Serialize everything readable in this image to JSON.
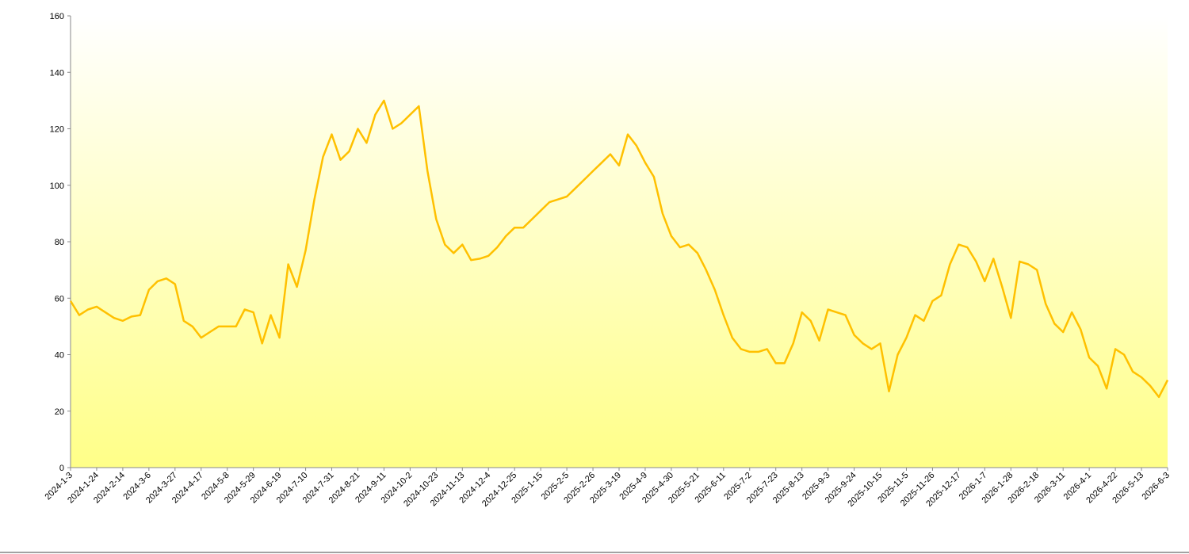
{
  "chart_data": {
    "type": "line",
    "categories": [
      "2024-1-3",
      null,
      null,
      "2024-1-24",
      null,
      null,
      "2024-2-14",
      null,
      null,
      "2024-3-6",
      null,
      null,
      "2024-3-27",
      null,
      null,
      "2024-4-17",
      null,
      null,
      "2024-5-8",
      null,
      null,
      "2024-5-29",
      null,
      null,
      "2024-6-19",
      null,
      null,
      "2024-7-10",
      null,
      null,
      "2024-7-31",
      null,
      null,
      "2024-8-21",
      null,
      null,
      "2024-9-11",
      null,
      null,
      "2024-10-2",
      null,
      null,
      "2024-10-23",
      null,
      null,
      "2024-11-13",
      null,
      null,
      "2024-12-4",
      null,
      null,
      "2024-12-25",
      null,
      null,
      "2025-1-15",
      null,
      null,
      "2025-2-5",
      null,
      null,
      "2025-2-26",
      null,
      null,
      "2025-3-19",
      null,
      null,
      "2025-4-9",
      null,
      null,
      "2025-4-30",
      null,
      null,
      "2025-5-21",
      null,
      null,
      "2025-6-11",
      null,
      null,
      "2025-7-2",
      null,
      null,
      "2025-7-23",
      null,
      null,
      "2025-8-13",
      null,
      null,
      "2025-9-3",
      null,
      null,
      "2025-9-24",
      null,
      null,
      "2025-10-15",
      null,
      null,
      "2025-11-5",
      null,
      null,
      "2025-11-26",
      null,
      null,
      "2025-12-17",
      null,
      null,
      "2026-1-7",
      null,
      null,
      "2026-1-28",
      null,
      null,
      "2026-2-18",
      null,
      null,
      "2026-3-11",
      null,
      null,
      "2026-4-1",
      null,
      null,
      "2026-4-22",
      null,
      null,
      "2026-5-13",
      null,
      null,
      "2026-6-3"
    ],
    "values": [
      59,
      54,
      56,
      57,
      55,
      53,
      52,
      53.5,
      54,
      63,
      66,
      67,
      65,
      52,
      50,
      46,
      48,
      50,
      50,
      50,
      56,
      55,
      44,
      54,
      46,
      72,
      64,
      77,
      95,
      110,
      118,
      109,
      112,
      120,
      115,
      125,
      130,
      120,
      122,
      125,
      128,
      105,
      88,
      79,
      76,
      79,
      73.5,
      74,
      75,
      78,
      82,
      85,
      85,
      88,
      91,
      94,
      95,
      96,
      99,
      102,
      105,
      108,
      111,
      107,
      118,
      114,
      108,
      103,
      90,
      82,
      78,
      79,
      76,
      70,
      63,
      54,
      46,
      42,
      41,
      41,
      42,
      37,
      37,
      44,
      55,
      52,
      45,
      56,
      55,
      54,
      47,
      44,
      42,
      44,
      27,
      40,
      46,
      54,
      52,
      59,
      61,
      72,
      79,
      78,
      73,
      66,
      74,
      64,
      53,
      73,
      72,
      70,
      58,
      51,
      48,
      55,
      49,
      39,
      36,
      28,
      42,
      40,
      34,
      32,
      29,
      25,
      31
    ],
    "color": "#ffc000",
    "ylim": [
      0,
      160
    ],
    "yticks": [
      0,
      20,
      40,
      60,
      80,
      100,
      120,
      140,
      160
    ]
  }
}
